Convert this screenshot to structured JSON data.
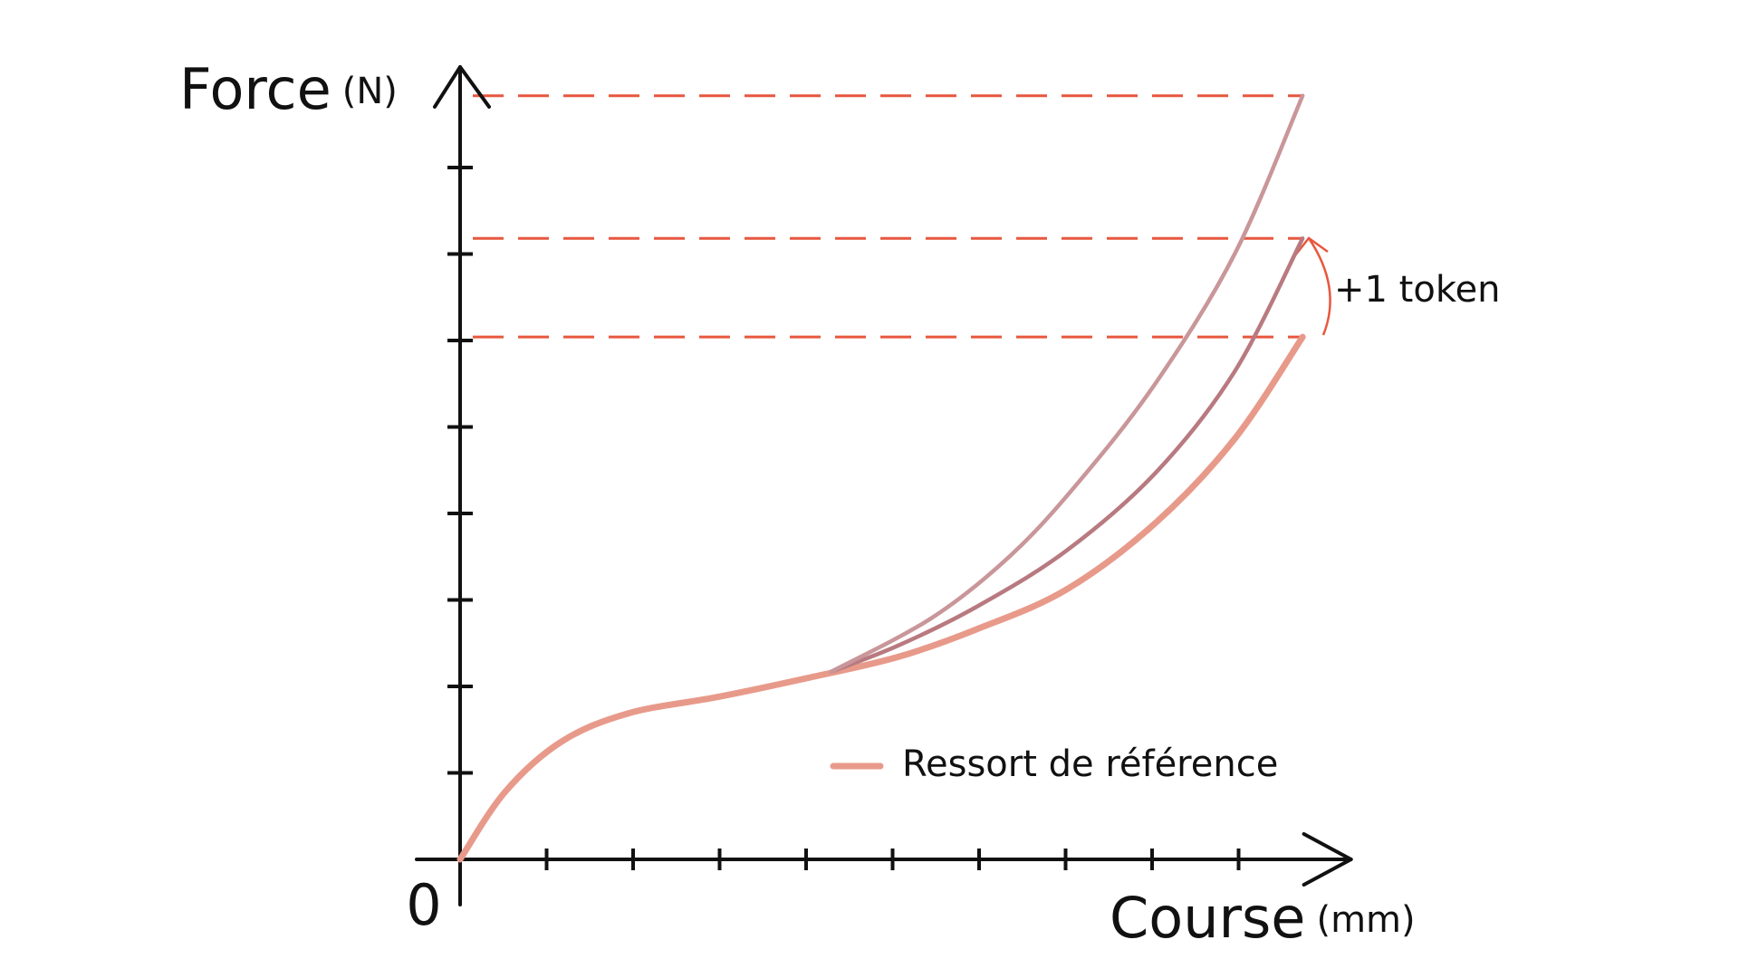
{
  "chart_data": {
    "type": "line",
    "y_label": "Force",
    "y_unit": "(N)",
    "x_label": "Course",
    "x_unit": "(mm)",
    "origin_label": "0",
    "annotation": "+1 token",
    "xlim": [
      0,
      10.3
    ],
    "ylim": [
      0,
      9.1
    ],
    "xticks": [
      1,
      2,
      3,
      4,
      5,
      6,
      7,
      8,
      9
    ],
    "yticks": [
      1,
      2,
      3,
      4,
      5,
      6,
      7,
      8
    ],
    "reference_color": "#e8573f",
    "series": [
      {
        "name": "Ressort de référence",
        "color": "#e89a8a",
        "x": [
          0,
          0.52,
          1.17,
          1.95,
          2.99,
          4.03,
          5.06,
          5.97,
          7.01,
          8.05,
          8.96,
          9.74
        ],
        "values": [
          0,
          0.78,
          1.36,
          1.69,
          1.88,
          2.1,
          2.34,
          2.66,
          3.12,
          3.9,
          4.87,
          6.04
        ]
      },
      {
        "color": "#b87a80",
        "x": [
          4.29,
          5.06,
          5.97,
          7.01,
          8.05,
          8.96,
          9.74
        ],
        "values": [
          2.17,
          2.47,
          2.92,
          3.57,
          4.48,
          5.65,
          7.18
        ]
      },
      {
        "color": "#c9969a",
        "x": [
          4.29,
          5.45,
          6.36,
          7.14,
          8.05,
          8.96,
          9.74
        ],
        "values": [
          2.17,
          2.79,
          3.51,
          4.35,
          5.52,
          7.01,
          8.83
        ]
      }
    ]
  }
}
